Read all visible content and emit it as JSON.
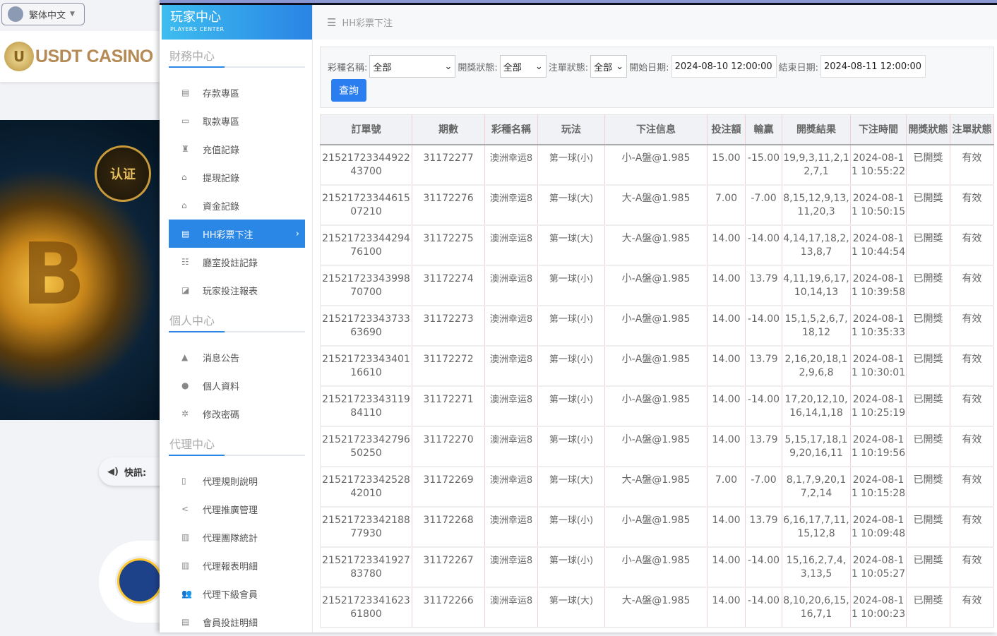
{
  "site": {
    "language": "繁体中文",
    "logo_text": "USDT CASINO",
    "badge": "认证",
    "news_label": "快訊:"
  },
  "sidebar": {
    "title": "玩家中心",
    "subtitle": "PLAYERS CENTER",
    "sections": [
      {
        "title": "財務中心",
        "items": [
          {
            "label": "存款專區",
            "icon": "card-icon"
          },
          {
            "label": "取款專區",
            "icon": "cash-icon"
          },
          {
            "label": "充值記錄",
            "icon": "money-bag-icon"
          },
          {
            "label": "提現記錄",
            "icon": "withdraw-icon"
          },
          {
            "label": "資金記錄",
            "icon": "fund-icon"
          },
          {
            "label": "HH彩票下注",
            "icon": "list-icon",
            "active": true
          },
          {
            "label": "廳室投註記錄",
            "icon": "list-bullet-icon"
          },
          {
            "label": "玩家投注報表",
            "icon": "chart-icon"
          }
        ]
      },
      {
        "title": "個人中心",
        "items": [
          {
            "label": "消息公告",
            "icon": "bell-icon"
          },
          {
            "label": "個人資料",
            "icon": "user-icon"
          },
          {
            "label": "修改密碼",
            "icon": "gear-icon"
          }
        ]
      },
      {
        "title": "代理中心",
        "items": [
          {
            "label": "代理規則說明",
            "icon": "document-icon"
          },
          {
            "label": "代理推廣管理",
            "icon": "share-icon"
          },
          {
            "label": "代理團隊統計",
            "icon": "copy-icon"
          },
          {
            "label": "代理報表明細",
            "icon": "copy-icon"
          },
          {
            "label": "代理下級會員",
            "icon": "users-icon"
          },
          {
            "label": "會員投註明細",
            "icon": "file-list-icon"
          }
        ]
      }
    ]
  },
  "header": {
    "title": "HH彩票下注"
  },
  "filter": {
    "lottery_label": "彩種名稱:",
    "lottery_value": "全部",
    "draw_status_label": "開獎狀態:",
    "draw_status_value": "全部",
    "order_status_label": "注單狀態:",
    "order_status_value": "全部",
    "start_label": "開始日期:",
    "start_value": "2024-08-10 12:00:00",
    "end_label": "結束日期:",
    "end_value": "2024-08-11 12:00:00",
    "query_button": "查詢"
  },
  "table": {
    "columns": [
      "訂單號",
      "期數",
      "彩種名稱",
      "玩法",
      "下注信息",
      "投注額",
      "輸贏",
      "開獎結果",
      "下注時間",
      "開獎狀態",
      "注單狀態"
    ],
    "rows": [
      [
        "2152172334492243700",
        "31172277",
        "澳洲幸运8",
        "第一球(小)",
        "小-A盤@1.985",
        "15.00",
        "-15.00",
        "19,9,3,11,2,12,7,1",
        "2024-08-11 10:55:22",
        "已開獎",
        "有效"
      ],
      [
        "2152172334461507210",
        "31172276",
        "澳洲幸运8",
        "第一球(大)",
        "大-A盤@1.985",
        "7.00",
        "-7.00",
        "8,15,12,9,13,11,20,3",
        "2024-08-11 10:50:15",
        "已開獎",
        "有效"
      ],
      [
        "2152172334429476100",
        "31172275",
        "澳洲幸运8",
        "第一球(大)",
        "大-A盤@1.985",
        "14.00",
        "-14.00",
        "4,14,17,18,2,13,8,7",
        "2024-08-11 10:44:54",
        "已開獎",
        "有效"
      ],
      [
        "2152172334399870700",
        "31172274",
        "澳洲幸运8",
        "第一球(小)",
        "小-A盤@1.985",
        "14.00",
        "13.79",
        "4,11,19,6,17,10,14,13",
        "2024-08-11 10:39:58",
        "已開獎",
        "有效"
      ],
      [
        "2152172334373363690",
        "31172273",
        "澳洲幸运8",
        "第一球(小)",
        "小-A盤@1.985",
        "14.00",
        "-14.00",
        "15,1,5,2,6,7,18,12",
        "2024-08-11 10:35:33",
        "已開獎",
        "有效"
      ],
      [
        "2152172334340116610",
        "31172272",
        "澳洲幸运8",
        "第一球(小)",
        "小-A盤@1.985",
        "14.00",
        "13.79",
        "2,16,20,18,12,9,6,8",
        "2024-08-11 10:30:01",
        "已開獎",
        "有效"
      ],
      [
        "2152172334311984110",
        "31172271",
        "澳洲幸运8",
        "第一球(小)",
        "小-A盤@1.985",
        "14.00",
        "-14.00",
        "17,20,12,10,16,14,1,18",
        "2024-08-11 10:25:19",
        "已開獎",
        "有效"
      ],
      [
        "2152172334279650250",
        "31172270",
        "澳洲幸运8",
        "第一球(小)",
        "小-A盤@1.985",
        "14.00",
        "13.79",
        "5,15,17,18,19,20,16,11",
        "2024-08-11 10:19:56",
        "已開獎",
        "有效"
      ],
      [
        "2152172334252842010",
        "31172269",
        "澳洲幸运8",
        "第一球(大)",
        "大-A盤@1.985",
        "7.00",
        "-7.00",
        "8,1,7,9,20,17,2,14",
        "2024-08-11 10:15:28",
        "已開獎",
        "有效"
      ],
      [
        "2152172334218877930",
        "31172268",
        "澳洲幸运8",
        "第一球(小)",
        "小-A盤@1.985",
        "14.00",
        "13.79",
        "6,16,17,7,11,15,12,8",
        "2024-08-11 10:09:48",
        "已開獎",
        "有效"
      ],
      [
        "2152172334192783780",
        "31172267",
        "澳洲幸运8",
        "第一球(小)",
        "小-A盤@1.985",
        "14.00",
        "-14.00",
        "15,16,2,7,4,3,13,5",
        "2024-08-11 10:05:27",
        "已開獎",
        "有效"
      ],
      [
        "2152172334162361800",
        "31172266",
        "澳洲幸运8",
        "第一球(大)",
        "大-A盤@1.985",
        "14.00",
        "-14.00",
        "8,10,20,6,15,16,7,1",
        "2024-08-11 10:00:23",
        "已開獎",
        "有效"
      ]
    ]
  },
  "colors": {
    "accent": "#2a87e5",
    "button": "#2a7ef0"
  }
}
